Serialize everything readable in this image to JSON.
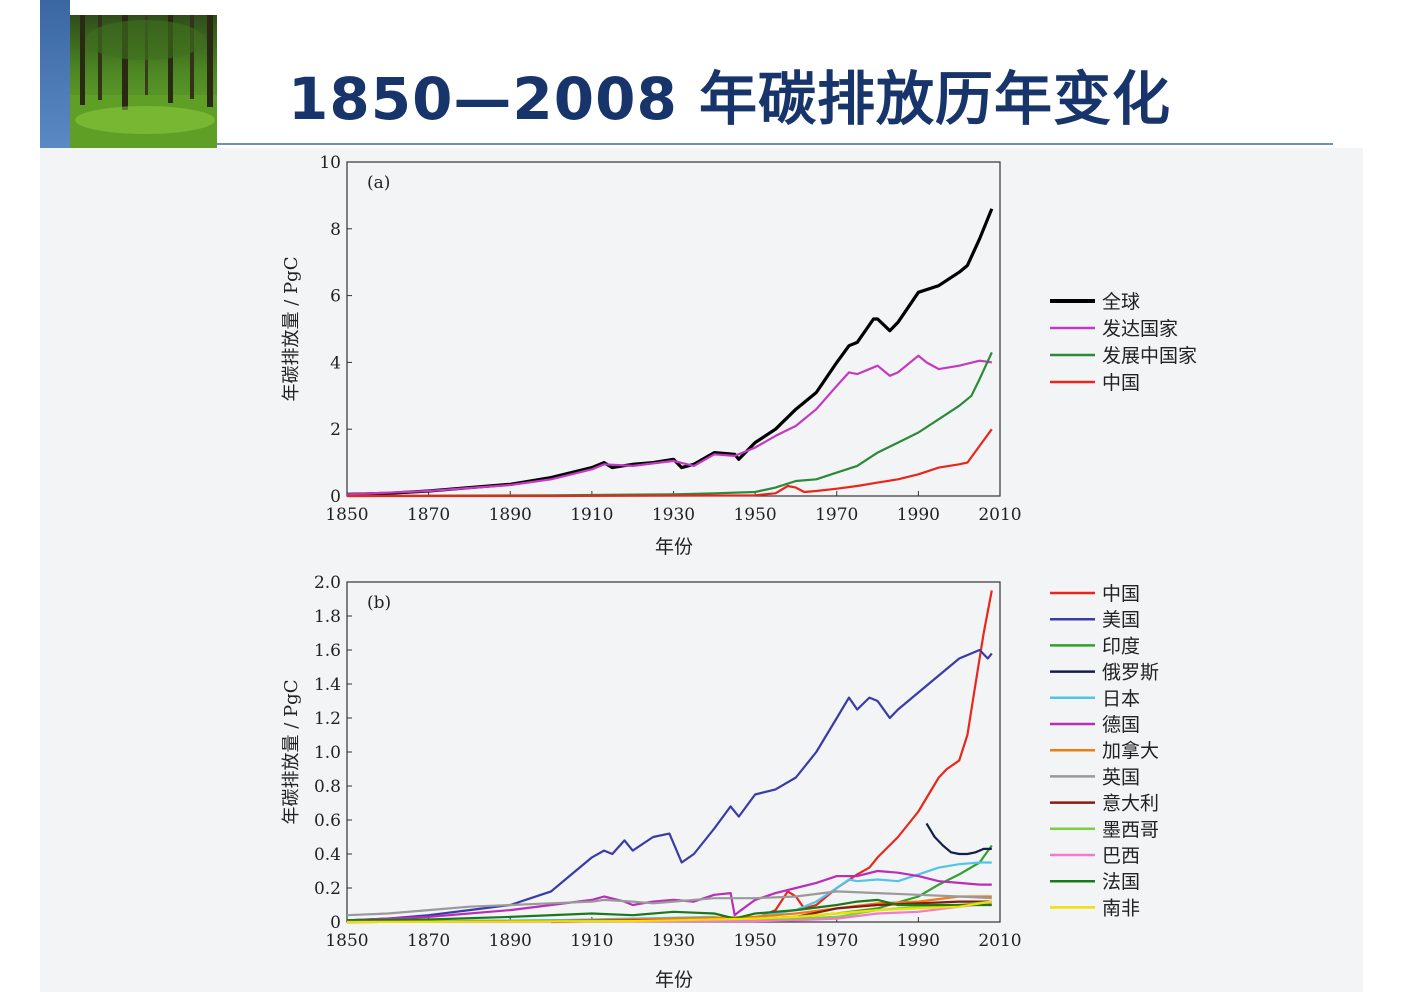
{
  "slide": {
    "title": "1850—2008 年碳排放历年变化"
  },
  "chart_data": [
    {
      "type": "line",
      "panel_label": "(a)",
      "xlabel": "年份",
      "ylabel": "年碳排放量 / PgC",
      "xlim": [
        1850,
        2010
      ],
      "ylim": [
        0,
        10
      ],
      "xticks": [
        "1850",
        "1870",
        "1890",
        "1910",
        "1930",
        "1950",
        "1970",
        "1990",
        "2010"
      ],
      "yticks": [
        "0",
        "2",
        "4",
        "6",
        "8",
        "10"
      ],
      "legend_position": "right",
      "series": [
        {
          "name": "全球",
          "color": "#000000",
          "x": [
            1850,
            1860,
            1870,
            1880,
            1890,
            1900,
            1905,
            1910,
            1913,
            1915,
            1920,
            1925,
            1930,
            1932,
            1935,
            1940,
            1945,
            1946,
            1950,
            1955,
            1960,
            1965,
            1970,
            1973,
            1975,
            1979,
            1980,
            1983,
            1985,
            1990,
            1995,
            2000,
            2002,
            2005,
            2008
          ],
          "y": [
            0.05,
            0.08,
            0.15,
            0.25,
            0.35,
            0.55,
            0.7,
            0.85,
            1.0,
            0.85,
            0.95,
            1.0,
            1.1,
            0.85,
            0.95,
            1.3,
            1.25,
            1.1,
            1.6,
            2.0,
            2.6,
            3.1,
            4.0,
            4.5,
            4.6,
            5.3,
            5.3,
            4.95,
            5.2,
            6.1,
            6.3,
            6.7,
            6.9,
            7.7,
            8.6
          ]
        },
        {
          "name": "发达国家",
          "color": "#c438c4",
          "x": [
            1850,
            1870,
            1890,
            1900,
            1910,
            1913,
            1920,
            1930,
            1935,
            1940,
            1945,
            1950,
            1955,
            1960,
            1965,
            1970,
            1973,
            1975,
            1980,
            1983,
            1985,
            1990,
            1992,
            1995,
            2000,
            2005,
            2008
          ],
          "y": [
            0.05,
            0.15,
            0.33,
            0.5,
            0.8,
            0.95,
            0.9,
            1.05,
            0.9,
            1.25,
            1.2,
            1.45,
            1.8,
            2.1,
            2.6,
            3.3,
            3.7,
            3.65,
            3.9,
            3.6,
            3.7,
            4.2,
            4.0,
            3.8,
            3.9,
            4.05,
            4.0
          ]
        },
        {
          "name": "发展中国家",
          "color": "#2a8a3a",
          "x": [
            1850,
            1900,
            1930,
            1940,
            1950,
            1955,
            1960,
            1965,
            1970,
            1975,
            1980,
            1985,
            1990,
            1995,
            2000,
            2003,
            2005,
            2008
          ],
          "y": [
            0,
            0.02,
            0.05,
            0.08,
            0.12,
            0.25,
            0.45,
            0.5,
            0.7,
            0.9,
            1.3,
            1.6,
            1.9,
            2.3,
            2.7,
            3.0,
            3.5,
            4.3
          ]
        },
        {
          "name": "中国",
          "color": "#e8271c",
          "x": [
            1850,
            1900,
            1950,
            1955,
            1958,
            1960,
            1962,
            1965,
            1970,
            1975,
            1980,
            1985,
            1990,
            1995,
            2000,
            2002,
            2005,
            2008
          ],
          "y": [
            0,
            0,
            0.02,
            0.08,
            0.3,
            0.25,
            0.12,
            0.15,
            0.22,
            0.3,
            0.4,
            0.5,
            0.65,
            0.85,
            0.95,
            1.0,
            1.5,
            2.0
          ]
        }
      ]
    },
    {
      "type": "line",
      "panel_label": "(b)",
      "xlabel": "年份",
      "ylabel": "年碳排放量 / PgC",
      "xlim": [
        1850,
        2010
      ],
      "ylim": [
        0,
        2.0
      ],
      "xticks": [
        "1850",
        "1870",
        "1890",
        "1910",
        "1930",
        "1950",
        "1970",
        "1990",
        "2010"
      ],
      "yticks": [
        "0",
        "0.2",
        "0.4",
        "0.6",
        "0.8",
        "1.0",
        "1.2",
        "1.4",
        "1.6",
        "1.8",
        "2.0"
      ],
      "legend_position": "right",
      "series": [
        {
          "name": "中国",
          "color": "#e8271c",
          "x": [
            1900,
            1950,
            1955,
            1958,
            1960,
            1962,
            1965,
            1970,
            1975,
            1978,
            1980,
            1985,
            1990,
            1995,
            1997,
            2000,
            2002,
            2004,
            2006,
            2008
          ],
          "y": [
            0,
            0.02,
            0.07,
            0.18,
            0.15,
            0.08,
            0.1,
            0.2,
            0.28,
            0.32,
            0.38,
            0.5,
            0.65,
            0.85,
            0.9,
            0.95,
            1.1,
            1.4,
            1.7,
            1.95
          ]
        },
        {
          "name": "美国",
          "color": "#3a3aa8",
          "x": [
            1850,
            1860,
            1870,
            1880,
            1890,
            1895,
            1900,
            1905,
            1910,
            1913,
            1915,
            1918,
            1920,
            1925,
            1929,
            1932,
            1935,
            1940,
            1944,
            1946,
            1950,
            1955,
            1960,
            1965,
            1970,
            1973,
            1975,
            1978,
            1980,
            1983,
            1985,
            1990,
            1995,
            2000,
            2005,
            2007,
            2008
          ],
          "y": [
            0.01,
            0.02,
            0.04,
            0.07,
            0.1,
            0.14,
            0.18,
            0.28,
            0.38,
            0.42,
            0.4,
            0.48,
            0.42,
            0.5,
            0.52,
            0.35,
            0.4,
            0.55,
            0.68,
            0.62,
            0.75,
            0.78,
            0.85,
            1.0,
            1.2,
            1.32,
            1.25,
            1.32,
            1.3,
            1.2,
            1.25,
            1.35,
            1.45,
            1.55,
            1.6,
            1.55,
            1.58
          ]
        },
        {
          "name": "印度",
          "color": "#2ea12e",
          "x": [
            1850,
            1950,
            1960,
            1970,
            1980,
            1990,
            1995,
            2000,
            2005,
            2008
          ],
          "y": [
            0,
            0.02,
            0.03,
            0.05,
            0.08,
            0.15,
            0.22,
            0.28,
            0.35,
            0.45
          ]
        },
        {
          "name": "俄罗斯",
          "color": "#141e4a",
          "x": [
            1992,
            1994,
            1996,
            1998,
            2000,
            2002,
            2004,
            2006,
            2008
          ],
          "y": [
            0.58,
            0.5,
            0.45,
            0.41,
            0.4,
            0.4,
            0.41,
            0.43,
            0.43
          ]
        },
        {
          "name": "日本",
          "color": "#52c4e8",
          "x": [
            1850,
            1900,
            1940,
            1945,
            1950,
            1955,
            1960,
            1965,
            1970,
            1973,
            1975,
            1980,
            1985,
            1990,
            1995,
            2000,
            2005,
            2008
          ],
          "y": [
            0,
            0.01,
            0.03,
            0.01,
            0.03,
            0.05,
            0.07,
            0.12,
            0.2,
            0.25,
            0.24,
            0.25,
            0.24,
            0.28,
            0.32,
            0.34,
            0.35,
            0.35
          ]
        },
        {
          "name": "德国",
          "color": "#b82eb8",
          "x": [
            1850,
            1870,
            1890,
            1900,
            1910,
            1913,
            1918,
            1920,
            1925,
            1930,
            1935,
            1940,
            1944,
            1945,
            1946,
            1950,
            1955,
            1960,
            1965,
            1970,
            1975,
            1980,
            1985,
            1990,
            1995,
            2000,
            2005,
            2008
          ],
          "y": [
            0.01,
            0.03,
            0.07,
            0.1,
            0.13,
            0.15,
            0.12,
            0.1,
            0.12,
            0.13,
            0.12,
            0.16,
            0.17,
            0.04,
            0.06,
            0.13,
            0.17,
            0.2,
            0.23,
            0.27,
            0.27,
            0.3,
            0.29,
            0.27,
            0.24,
            0.23,
            0.22,
            0.22
          ]
        },
        {
          "name": "加拿大",
          "color": "#f07a1a",
          "x": [
            1850,
            1900,
            1930,
            1950,
            1960,
            1970,
            1980,
            1990,
            2000,
            2008
          ],
          "y": [
            0,
            0.005,
            0.02,
            0.03,
            0.05,
            0.08,
            0.11,
            0.12,
            0.15,
            0.15
          ]
        },
        {
          "name": "英国",
          "color": "#9a9a9a",
          "x": [
            1850,
            1860,
            1870,
            1880,
            1890,
            1900,
            1910,
            1913,
            1920,
            1925,
            1930,
            1940,
            1950,
            1960,
            1970,
            1980,
            1990,
            2000,
            2008
          ],
          "y": [
            0.04,
            0.05,
            0.07,
            0.09,
            0.1,
            0.11,
            0.12,
            0.13,
            0.12,
            0.11,
            0.12,
            0.14,
            0.14,
            0.15,
            0.18,
            0.17,
            0.16,
            0.15,
            0.14
          ]
        },
        {
          "name": "意大利",
          "color": "#8a1a0a",
          "x": [
            1850,
            1900,
            1930,
            1950,
            1960,
            1970,
            1980,
            1990,
            2000,
            2008
          ],
          "y": [
            0,
            0.005,
            0.01,
            0.015,
            0.03,
            0.08,
            0.1,
            0.11,
            0.12,
            0.12
          ]
        },
        {
          "name": "墨西哥",
          "color": "#7ad040",
          "x": [
            1850,
            1920,
            1950,
            1960,
            1970,
            1980,
            1990,
            2000,
            2008
          ],
          "y": [
            0,
            0.005,
            0.01,
            0.02,
            0.03,
            0.07,
            0.09,
            0.1,
            0.12
          ]
        },
        {
          "name": "巴西",
          "color": "#f07ad0",
          "x": [
            1850,
            1950,
            1960,
            1970,
            1980,
            1990,
            2000,
            2008
          ],
          "y": [
            0,
            0.005,
            0.01,
            0.02,
            0.05,
            0.06,
            0.09,
            0.11
          ]
        },
        {
          "name": "法国",
          "color": "#1a7a1a",
          "x": [
            1850,
            1870,
            1890,
            1910,
            1920,
            1930,
            1940,
            1945,
            1950,
            1960,
            1970,
            1975,
            1980,
            1985,
            1990,
            2000,
            2008
          ],
          "y": [
            0.01,
            0.015,
            0.03,
            0.05,
            0.04,
            0.06,
            0.05,
            0.02,
            0.05,
            0.07,
            0.1,
            0.12,
            0.13,
            0.1,
            0.1,
            0.1,
            0.1
          ]
        },
        {
          "name": "南非",
          "color": "#f0e000",
          "x": [
            1850,
            1920,
            1950,
            1960,
            1970,
            1980,
            1990,
            2000,
            2008
          ],
          "y": [
            0,
            0.005,
            0.02,
            0.03,
            0.05,
            0.07,
            0.08,
            0.09,
            0.12
          ]
        }
      ]
    }
  ]
}
